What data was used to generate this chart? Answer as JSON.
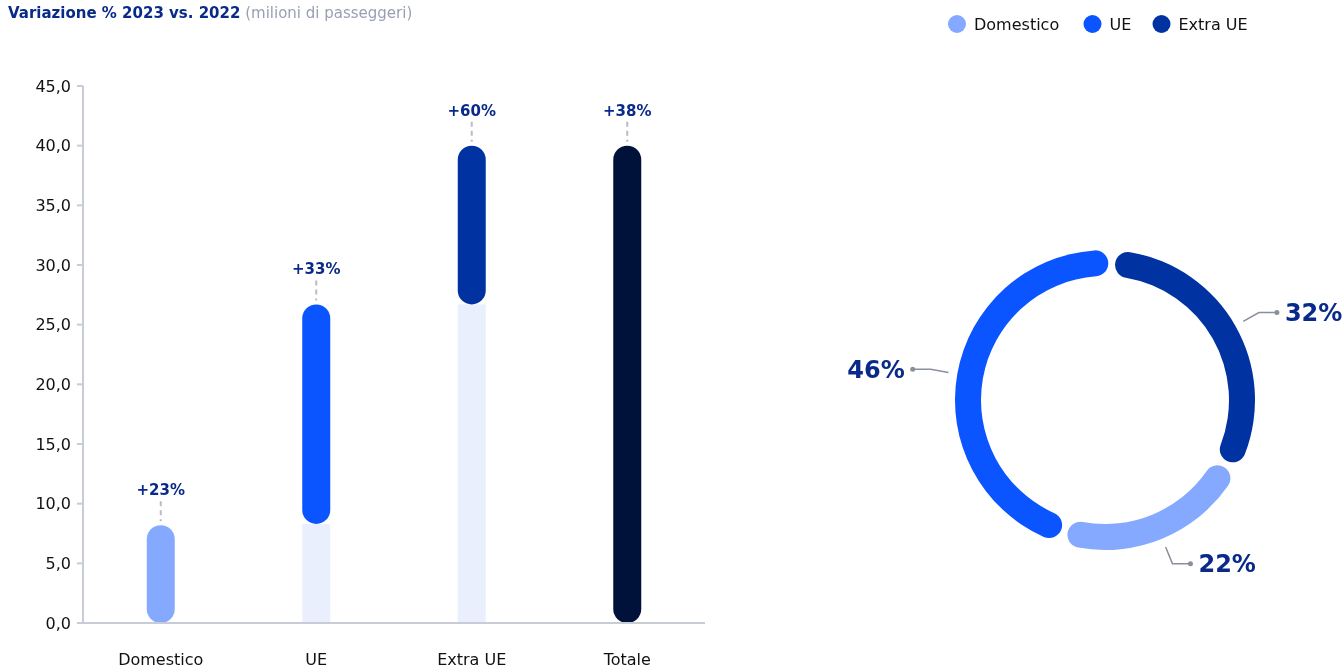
{
  "chart_data": [
    {
      "type": "bar",
      "title": "Variazione % 2023 vs. 2022",
      "subtitle": "(milioni di passeggeri)",
      "categories": [
        "Domestico",
        "UE",
        "Extra UE",
        "Totale"
      ],
      "stacked": true,
      "series": [
        {
          "color": "#e9effd",
          "values": [
            null,
            8.3,
            26.7,
            null
          ]
        },
        {
          "colors": [
            "#84a9ff",
            "#0a55ff",
            "#0033a1",
            "#00123a"
          ],
          "values": [
            8.2,
            18.4,
            13.3,
            40.0
          ]
        }
      ],
      "ylim": [
        0,
        45
      ],
      "yticks": [
        {
          "value": 0,
          "label": "0,0"
        },
        {
          "value": 5,
          "label": "5,0"
        },
        {
          "value": 10,
          "label": "10,0"
        },
        {
          "value": 15,
          "label": "15,0"
        },
        {
          "value": 20,
          "label": "20,0"
        },
        {
          "value": 25,
          "label": "25,0"
        },
        {
          "value": 30,
          "label": "30,0"
        },
        {
          "value": 35,
          "label": "35,0"
        },
        {
          "value": 40,
          "label": "40,0"
        },
        {
          "value": 45,
          "label": "45,0"
        }
      ],
      "grid": false,
      "annotations": [
        {
          "text": "+23%",
          "x": "Domestico",
          "y": 8.2
        },
        {
          "text": "+33%",
          "x": "UE",
          "y": 26.7
        },
        {
          "text": "+60%",
          "x": "Extra UE",
          "y": 40.0
        },
        {
          "text": "+38%",
          "x": "Totale",
          "y": 40.0
        }
      ]
    },
    {
      "type": "donut",
      "categories": [
        "Domestico",
        "UE",
        "Extra UE"
      ],
      "values": [
        22,
        46,
        32
      ],
      "colors": [
        "#84a9ff",
        "#0a55ff",
        "#0033a1"
      ],
      "value_labels": [
        "22%",
        "46%",
        "32%"
      ],
      "legend": "top right"
    }
  ]
}
